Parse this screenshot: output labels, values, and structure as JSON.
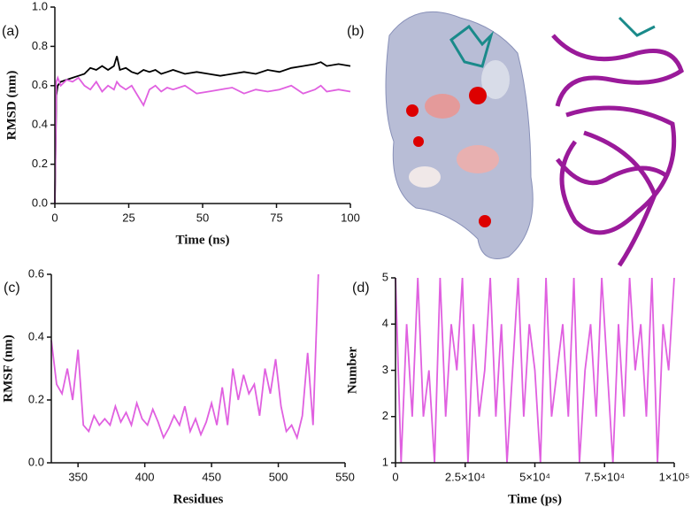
{
  "panel_labels": [
    "(a)",
    "(b)",
    "(c)",
    "(d)"
  ],
  "chart_data": [
    {
      "type": "line",
      "xlabel": "Time (ns)",
      "ylabel": "RMSD (nm)",
      "x": [
        0,
        0.5,
        1,
        2,
        4,
        6,
        8,
        10,
        12,
        14,
        16,
        18,
        20,
        21,
        22,
        24,
        26,
        28,
        30,
        32,
        34,
        36,
        38,
        40,
        44,
        48,
        52,
        56,
        60,
        64,
        68,
        72,
        76,
        80,
        84,
        88,
        90,
        92,
        96,
        100
      ],
      "series": [
        {
          "color": "#000000",
          "values": [
            0,
            0.55,
            0.6,
            0.62,
            0.63,
            0.64,
            0.65,
            0.66,
            0.69,
            0.68,
            0.7,
            0.68,
            0.7,
            0.75,
            0.68,
            0.69,
            0.67,
            0.66,
            0.68,
            0.67,
            0.68,
            0.66,
            0.67,
            0.68,
            0.66,
            0.67,
            0.66,
            0.65,
            0.66,
            0.67,
            0.66,
            0.68,
            0.67,
            0.69,
            0.7,
            0.71,
            0.72,
            0.7,
            0.71,
            0.7
          ]
        },
        {
          "color": "#e060e0",
          "values": [
            0,
            0.62,
            0.64,
            0.6,
            0.63,
            0.62,
            0.64,
            0.6,
            0.58,
            0.62,
            0.57,
            0.6,
            0.58,
            0.62,
            0.6,
            0.58,
            0.6,
            0.55,
            0.5,
            0.58,
            0.6,
            0.57,
            0.59,
            0.58,
            0.6,
            0.56,
            0.57,
            0.58,
            0.59,
            0.56,
            0.58,
            0.57,
            0.58,
            0.6,
            0.56,
            0.58,
            0.6,
            0.57,
            0.58,
            0.57
          ]
        }
      ],
      "xlim": [
        0,
        100
      ],
      "xticks": [
        0,
        25,
        50,
        75,
        100
      ],
      "ylim": [
        0,
        1
      ],
      "yticks": [
        {
          "value": 0,
          "label": "0.0"
        },
        0.2,
        0.4,
        0.6,
        0.8,
        {
          "value": 1,
          "label": "1.0"
        }
      ]
    },
    {
      "type": "line",
      "xlabel": "Residues",
      "ylabel": "RMSF (nm)",
      "x": [
        330,
        334,
        338,
        342,
        346,
        350,
        354,
        358,
        362,
        366,
        370,
        374,
        378,
        382,
        386,
        390,
        394,
        398,
        402,
        406,
        410,
        414,
        418,
        422,
        426,
        430,
        434,
        438,
        442,
        446,
        450,
        454,
        458,
        462,
        466,
        470,
        474,
        478,
        482,
        486,
        490,
        494,
        498,
        502,
        506,
        510,
        514,
        518,
        522,
        526,
        530
      ],
      "series": [
        {
          "color": "#e060e0",
          "values": [
            0.39,
            0.25,
            0.22,
            0.3,
            0.2,
            0.36,
            0.12,
            0.1,
            0.15,
            0.12,
            0.14,
            0.12,
            0.18,
            0.13,
            0.16,
            0.12,
            0.19,
            0.14,
            0.12,
            0.17,
            0.13,
            0.08,
            0.11,
            0.15,
            0.12,
            0.18,
            0.1,
            0.14,
            0.09,
            0.13,
            0.19,
            0.12,
            0.24,
            0.12,
            0.3,
            0.2,
            0.28,
            0.22,
            0.25,
            0.15,
            0.3,
            0.22,
            0.33,
            0.18,
            0.1,
            0.12,
            0.08,
            0.15,
            0.35,
            0.12,
            0.6
          ]
        }
      ],
      "xlim": [
        330,
        550
      ],
      "xticks": [
        350,
        400,
        450,
        500,
        550
      ],
      "ylim": [
        0,
        0.6
      ],
      "yticks": [
        {
          "value": 0,
          "label": "0.0"
        },
        0.2,
        0.4,
        0.6
      ]
    },
    {
      "type": "line",
      "xlabel": "Time (ps)",
      "ylabel": "Number",
      "x": [
        0,
        2000,
        4000,
        6000,
        8000,
        10000,
        12000,
        14000,
        16000,
        18000,
        20000,
        22000,
        24000,
        26000,
        28000,
        30000,
        32000,
        34000,
        36000,
        38000,
        40000,
        42000,
        44000,
        46000,
        48000,
        50000,
        52000,
        54000,
        56000,
        58000,
        60000,
        62000,
        64000,
        66000,
        68000,
        70000,
        72000,
        74000,
        76000,
        78000,
        80000,
        82000,
        84000,
        86000,
        88000,
        90000,
        92000,
        94000,
        96000,
        98000,
        100000
      ],
      "series": [
        {
          "color": "#e060e0",
          "values": [
            5,
            1,
            4,
            2,
            5,
            2,
            3,
            1,
            5,
            2,
            4,
            3,
            5,
            1,
            4,
            2,
            3,
            5,
            2,
            4,
            1,
            3,
            5,
            2,
            4,
            3,
            1,
            5,
            2,
            3,
            4,
            2,
            5,
            1,
            3,
            4,
            2,
            5,
            3,
            1,
            4,
            2,
            5,
            3,
            4,
            2,
            5,
            1,
            4,
            3,
            5
          ]
        }
      ],
      "xlim": [
        0,
        100000
      ],
      "xticks": [
        0,
        {
          "value": 25000,
          "label": "2.5×10⁴"
        },
        {
          "value": 50000,
          "label": "5×10⁴"
        },
        {
          "value": 75000,
          "label": "7.5×10⁴"
        },
        {
          "value": 100000,
          "label": "1×10⁵"
        }
      ],
      "ylim": [
        1,
        5
      ],
      "yticks": [
        1,
        2,
        3,
        4,
        5
      ]
    }
  ]
}
